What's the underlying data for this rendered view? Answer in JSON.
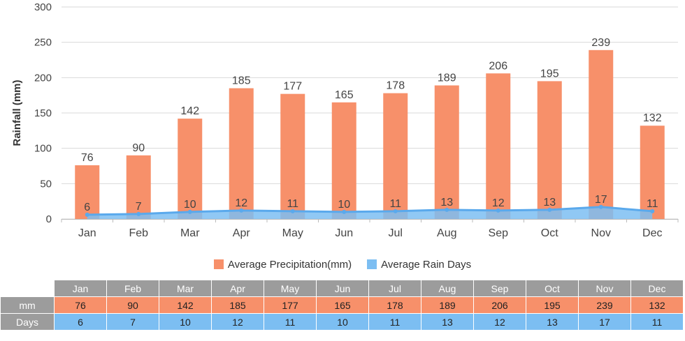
{
  "chart_data": {
    "type": "bar",
    "categories": [
      "Jan",
      "Feb",
      "Mar",
      "Apr",
      "May",
      "Jun",
      "Jul",
      "Aug",
      "Sep",
      "Oct",
      "Nov",
      "Dec"
    ],
    "series": [
      {
        "name": "Average Precipitation(mm)",
        "kind": "bar",
        "values": [
          76,
          90,
          142,
          185,
          177,
          165,
          178,
          189,
          206,
          195,
          239,
          132
        ],
        "color": "#f7906a"
      },
      {
        "name": "Average Rain Days",
        "kind": "area",
        "values": [
          6,
          7,
          10,
          12,
          11,
          10,
          11,
          13,
          12,
          13,
          17,
          11
        ],
        "color": "#7cbef2"
      }
    ],
    "ylabel": "Rainfall (mm)",
    "ylim": [
      0,
      300
    ],
    "yticks": [
      0,
      50,
      100,
      150,
      200,
      250,
      300
    ],
    "grid": true,
    "legend_position": "bottom"
  },
  "legend": {
    "items": [
      {
        "label": "Average Precipitation(mm)",
        "color": "#f7906a"
      },
      {
        "label": "Average Rain Days",
        "color": "#7cbef2"
      }
    ]
  },
  "table": {
    "months": [
      "Jan",
      "Feb",
      "Mar",
      "Apr",
      "May",
      "Jun",
      "Jul",
      "Aug",
      "Sep",
      "Oct",
      "Nov",
      "Dec"
    ],
    "rows": [
      {
        "label": "mm",
        "values": [
          "76",
          "90",
          "142",
          "185",
          "177",
          "165",
          "178",
          "189",
          "206",
          "195",
          "239",
          "132"
        ]
      },
      {
        "label": "Days",
        "values": [
          "6",
          "7",
          "10",
          "12",
          "11",
          "10",
          "11",
          "13",
          "12",
          "13",
          "17",
          "11"
        ]
      }
    ]
  }
}
